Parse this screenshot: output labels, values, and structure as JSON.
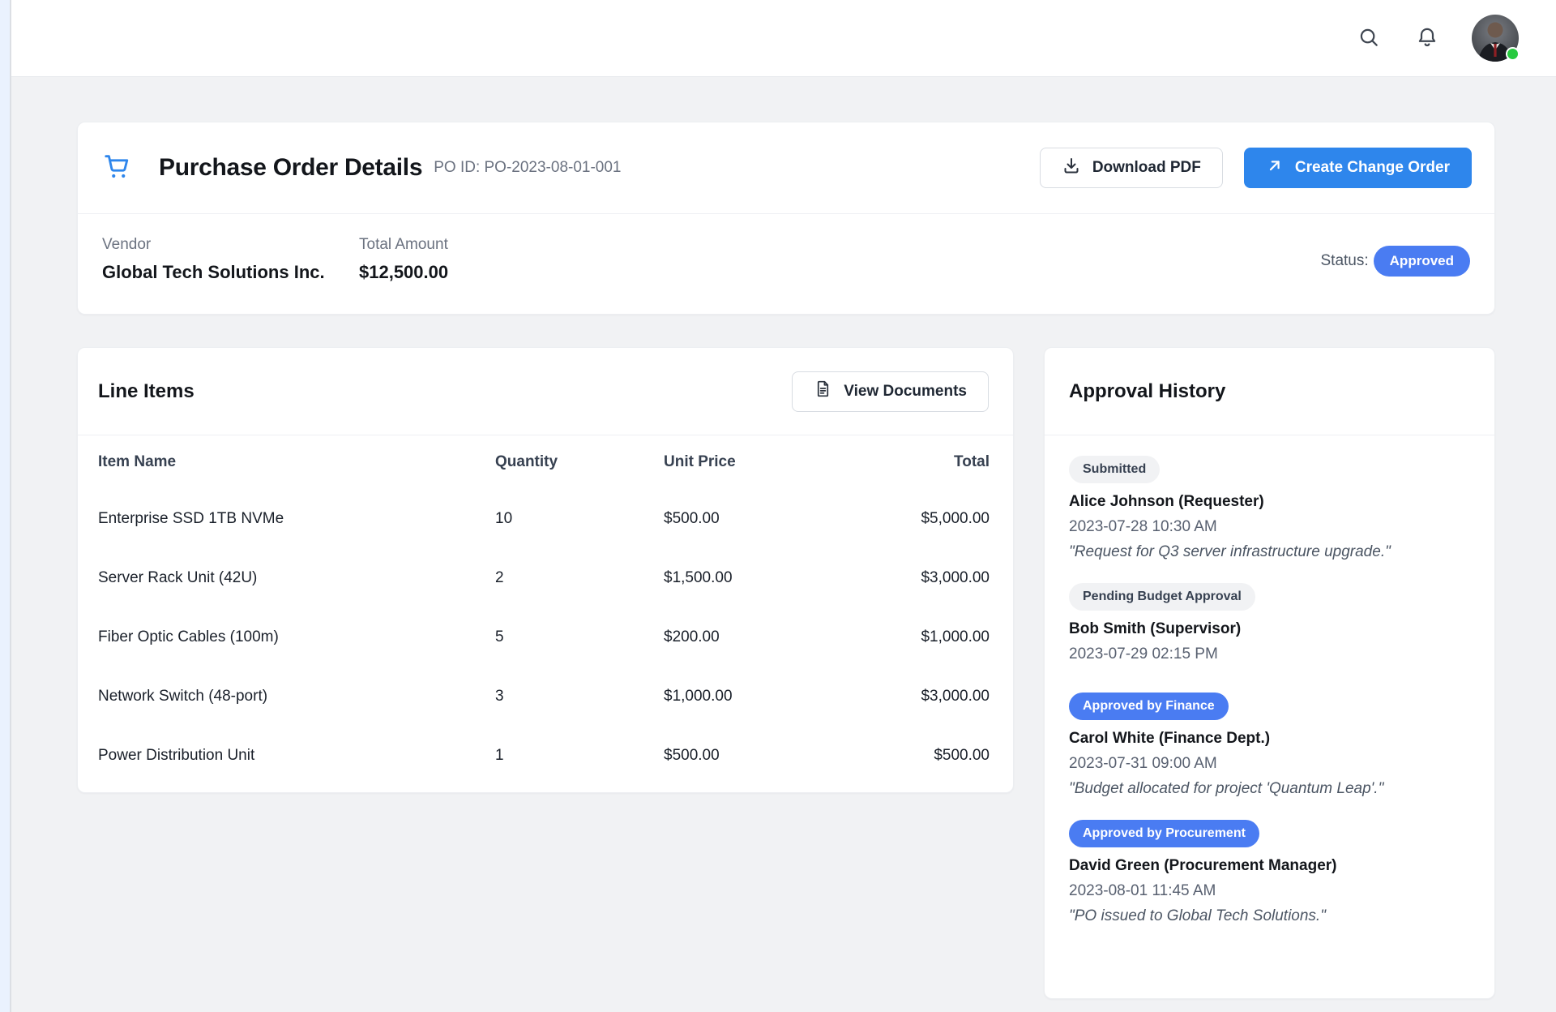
{
  "colors": {
    "accent_button": "#2e86ec",
    "badge_blue": "#4a7cf2",
    "badge_gray_bg": "#f1f2f4",
    "online_green": "#27c93f",
    "page_bg": "#f1f2f4"
  },
  "topbar": {
    "icons": [
      "search-icon",
      "bell-icon",
      "user-avatar"
    ],
    "avatar_status": "online"
  },
  "header": {
    "title": "Purchase Order Details",
    "po_id": "PO ID: PO-2023-08-01-001",
    "download_pdf_label": "Download PDF",
    "create_change_order_label": "Create Change Order"
  },
  "summary": {
    "vendor_label": "Vendor",
    "vendor_value": "Global Tech Solutions Inc.",
    "total_label": "Total Amount",
    "total_value": "$12,500.00",
    "status_label": "Status:",
    "status_value": "Approved"
  },
  "line_items": {
    "title": "Line Items",
    "view_documents_label": "View Documents",
    "columns": [
      "Item Name",
      "Quantity",
      "Unit Price",
      "Total"
    ],
    "rows": [
      [
        "Enterprise SSD 1TB NVMe",
        "10",
        "$500.00",
        "$5,000.00"
      ],
      [
        "Server Rack Unit (42U)",
        "2",
        "$1,500.00",
        "$3,000.00"
      ],
      [
        "Fiber Optic Cables (100m)",
        "5",
        "$200.00",
        "$1,000.00"
      ],
      [
        "Network Switch (48-port)",
        "3",
        "$1,000.00",
        "$3,000.00"
      ],
      [
        "Power Distribution Unit",
        "1",
        "$500.00",
        "$500.00"
      ]
    ]
  },
  "approval_history": {
    "title": "Approval History",
    "entries": [
      {
        "badge": "Submitted",
        "badge_style": "gray",
        "name": "Alice Johnson (Requester)",
        "timestamp": "2023-07-28 10:30 AM",
        "comment": "\"Request for Q3 server infrastructure upgrade.\""
      },
      {
        "badge": "Pending Budget Approval",
        "badge_style": "gray",
        "name": "Bob Smith (Supervisor)",
        "timestamp": "2023-07-29 02:15 PM",
        "comment": ""
      },
      {
        "badge": "Approved by Finance",
        "badge_style": "blue",
        "name": "Carol White (Finance Dept.)",
        "timestamp": "2023-07-31 09:00 AM",
        "comment": "\"Budget allocated for project 'Quantum Leap'.\""
      },
      {
        "badge": "Approved by Procurement",
        "badge_style": "blue",
        "name": "David Green (Procurement Manager)",
        "timestamp": "2023-08-01 11:45 AM",
        "comment": "\"PO issued to Global Tech Solutions.\""
      }
    ]
  }
}
